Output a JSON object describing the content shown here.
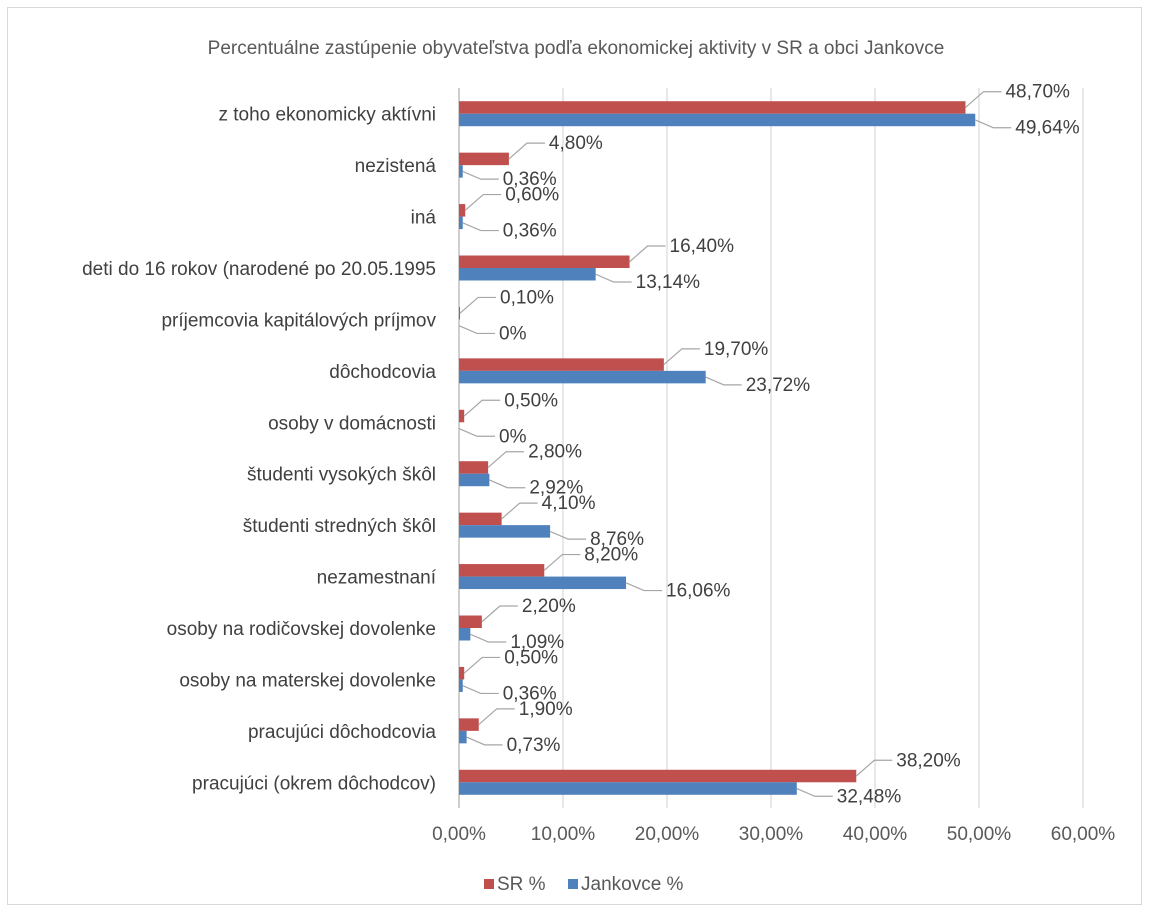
{
  "chart_data": {
    "type": "bar",
    "orientation": "horizontal",
    "title": "Percentuálne zastúpenie obyvateľstva podľa ekonomickej aktivity v SR a obci Jankovce",
    "categories": [
      "pracujúci (okrem dôchodcov)",
      "pracujúci dôchodcovia",
      "osoby na materskej dovolenke",
      "osoby na rodičovskej dovolenke",
      "nezamestnaní",
      "študenti stredných škôl",
      "študenti vysokých škôl",
      "osoby v domácnosti",
      "dôchodcovia",
      "príjemcovia kapitálových príjmov",
      "deti do 16 rokov (narodené po 20.05.1995",
      "iná",
      "nezistená",
      "z toho ekonomicky aktívni"
    ],
    "series": [
      {
        "name": "SR %",
        "color": "#c0504d",
        "values": [
          38.2,
          1.9,
          0.5,
          2.2,
          8.2,
          4.1,
          2.8,
          0.5,
          19.7,
          0.1,
          16.4,
          0.6,
          4.8,
          48.7
        ],
        "labels": [
          "38,20%",
          "1,90%",
          "0,50%",
          "2,20%",
          "8,20%",
          "4,10%",
          "2,80%",
          "0,50%",
          "19,70%",
          "0,10%",
          "16,40%",
          "0,60%",
          "4,80%",
          "48,70%"
        ]
      },
      {
        "name": "Jankovce %",
        "color": "#4f81bd",
        "values": [
          32.48,
          0.73,
          0.36,
          1.09,
          16.06,
          8.76,
          2.92,
          0,
          23.72,
          0,
          13.14,
          0.36,
          0.36,
          49.64
        ],
        "labels": [
          "32,48%",
          "0,73%",
          "0,36%",
          "1,09%",
          "16,06%",
          "8,76%",
          "2,92%",
          "0%",
          "23,72%",
          "0%",
          "13,14%",
          "0,36%",
          "0,36%",
          "49,64%"
        ]
      }
    ],
    "xlim": [
      0,
      60
    ],
    "x_ticks": [
      "0,00%",
      "10,00%",
      "20,00%",
      "30,00%",
      "40,00%",
      "50,00%",
      "60,00%"
    ],
    "grid": true,
    "legend_position": "bottom"
  }
}
